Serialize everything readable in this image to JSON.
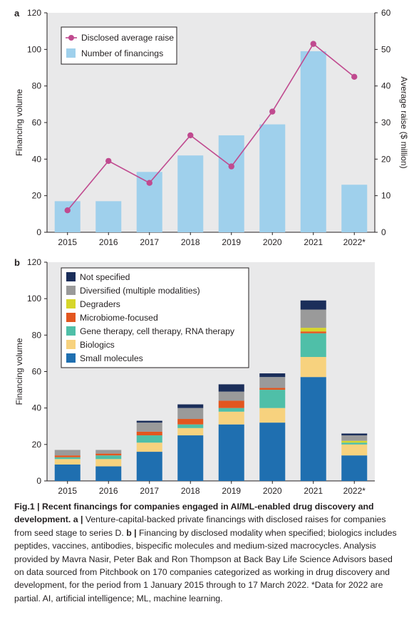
{
  "chart_data": [
    {
      "panel": "a",
      "type": "bar+line",
      "categories": [
        "2015",
        "2016",
        "2017",
        "2018",
        "2019",
        "2020",
        "2021",
        "2022*"
      ],
      "ylabel": "Financing volume",
      "ylim": [
        0,
        120
      ],
      "yticks": [
        "0",
        "20",
        "40",
        "60",
        "80",
        "100",
        "120"
      ],
      "y2label": "Average raise ($ million)",
      "y2lim": [
        0,
        60
      ],
      "y2ticks": [
        "0",
        "10",
        "20",
        "30",
        "40",
        "50",
        "60"
      ],
      "legend_position": "top-left",
      "series": [
        {
          "name": "Number of financings",
          "kind": "bar",
          "axis": "left",
          "color": "#9fd0ec",
          "values": [
            17,
            17,
            33,
            42,
            53,
            59,
            99,
            26
          ]
        },
        {
          "name": "Disclosed average raise",
          "kind": "line",
          "axis": "right",
          "color": "#c04a8f",
          "values": [
            6,
            19.5,
            13.5,
            26.5,
            18,
            33,
            51.5,
            42.5
          ]
        }
      ]
    },
    {
      "panel": "b",
      "type": "stacked-bar",
      "categories": [
        "2015",
        "2016",
        "2017",
        "2018",
        "2019",
        "2020",
        "2021",
        "2022*"
      ],
      "ylabel": "Financing volume",
      "ylim": [
        0,
        120
      ],
      "yticks": [
        "0",
        "20",
        "40",
        "60",
        "80",
        "100",
        "120"
      ],
      "legend_position": "top-left",
      "series": [
        {
          "name": "Small molecules",
          "color": "#1f6fb0",
          "values": [
            9,
            8,
            16,
            25,
            31,
            32,
            57,
            14
          ]
        },
        {
          "name": "Biologics",
          "color": "#f7d27e",
          "values": [
            3,
            4,
            5,
            4,
            7,
            8,
            11,
            6
          ]
        },
        {
          "name": "Gene therapy, cell therapy, RNA therapy",
          "color": "#4fbfa8",
          "values": [
            1,
            2,
            4,
            2,
            2,
            10,
            13,
            1
          ]
        },
        {
          "name": "Microbiome-focused",
          "color": "#e3561f",
          "values": [
            1,
            1,
            2,
            3,
            4,
            1,
            1,
            0
          ]
        },
        {
          "name": "Degraders",
          "color": "#d6d62a",
          "values": [
            0,
            0,
            0,
            0,
            0,
            0,
            2,
            1
          ]
        },
        {
          "name": "Diversified (multiple modalities)",
          "color": "#9a9a9a",
          "values": [
            3,
            2,
            5,
            6,
            5,
            6,
            10,
            3
          ]
        },
        {
          "name": "Not specified",
          "color": "#1b2e5a",
          "values": [
            0,
            0,
            1,
            2,
            4,
            2,
            5,
            1
          ]
        }
      ],
      "legend_order": [
        "Not specified",
        "Diversified (multiple modalities)",
        "Degraders",
        "Microbiome-focused",
        "Gene therapy, cell therapy, RNA therapy",
        "Biologics",
        "Small molecules"
      ]
    }
  ],
  "caption": {
    "title": "Fig.1 | Recent financings for companies engaged in AI/ML-enabled drug discovery and development.",
    "a_label": "a |",
    "a_text": "Venture-capital-backed private financings with disclosed raises for companies from seed stage to series D.",
    "b_label": "b |",
    "b_text": "Financing by disclosed modality when specified; biologics includes peptides, vaccines, antibodies, bispecific molecules and medium-sized macrocycles. Analysis provided by Mavra Nasir, Peter Bak and Ron Thompson at Back Bay Life Science Advisors based on data sourced from Pitchbook on 170 companies categorized as working in drug discovery and development, for the period from 1 January 2015 through to 17 March 2022. *Data for 2022 are partial. AI, artificial intelligence; ML, machine learning."
  }
}
